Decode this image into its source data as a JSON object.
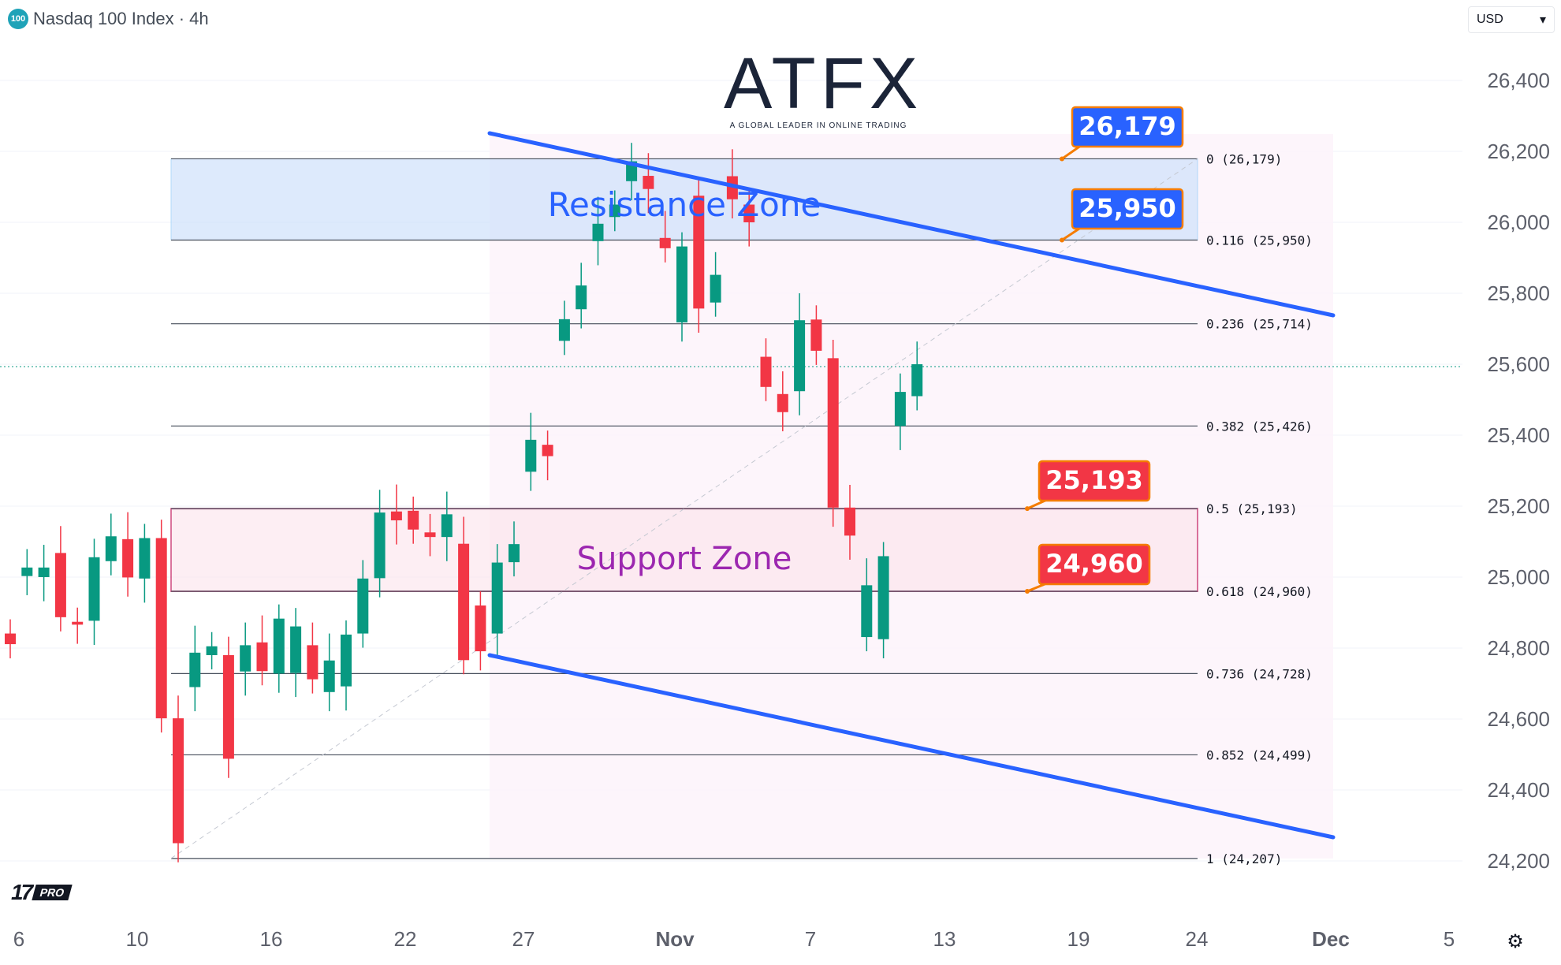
{
  "header": {
    "badge": "100",
    "title": "Nasdaq 100 Index · 4h"
  },
  "currency": {
    "label": "USD",
    "caret": "▾"
  },
  "logo": {
    "word": "ATFX",
    "tagline": "A GLOBAL LEADER IN ONLINE TRADING"
  },
  "watermark": {
    "text": "PRO"
  },
  "settings_icon": "⚙",
  "chart_data": {
    "type": "candlestick",
    "y_axis": {
      "min": 24100,
      "max": 26450,
      "ticks": [
        26400,
        26200,
        26000,
        25800,
        25600,
        25400,
        25200,
        25000,
        24800,
        24600,
        24400,
        24200
      ]
    },
    "x_axis": {
      "labels": [
        "6",
        "10",
        "16",
        "22",
        "27",
        "Nov",
        "7",
        "13",
        "19",
        "24",
        "Dec",
        "5"
      ]
    },
    "candles": [
      [
        24841,
        24811
      ],
      [
        25003,
        25027
      ],
      [
        25000,
        25027
      ],
      [
        25068,
        24887
      ],
      [
        24874,
        24866
      ],
      [
        24877,
        25056
      ],
      [
        25045,
        25115
      ],
      [
        25107,
        24999
      ],
      [
        24996,
        25110
      ],
      [
        25110,
        24602
      ],
      [
        24602,
        24250
      ],
      [
        24690,
        24787
      ],
      [
        24780,
        24805
      ],
      [
        24780,
        24488
      ],
      [
        24734,
        24808
      ],
      [
        24816,
        24735
      ],
      [
        24728,
        24883
      ],
      [
        24730,
        24861
      ],
      [
        24808,
        24712
      ],
      [
        24676,
        24765
      ],
      [
        24692,
        24838
      ],
      [
        24841,
        24996
      ],
      [
        24997,
        25182
      ],
      [
        25185,
        25160
      ],
      [
        25187,
        25134
      ],
      [
        25126,
        25113
      ],
      [
        25113,
        25177
      ],
      [
        25094,
        24766
      ],
      [
        24920,
        24791
      ],
      [
        24841,
        25041
      ],
      [
        25042,
        25093
      ],
      [
        25297,
        25387
      ],
      [
        25373,
        25341
      ],
      [
        25666,
        25727
      ],
      [
        25755,
        25822
      ],
      [
        25947,
        25996
      ],
      [
        26015,
        26050
      ],
      [
        26116,
        26172
      ],
      [
        26131,
        26094
      ],
      [
        25956,
        25927
      ],
      [
        25718,
        25932
      ],
      [
        26075,
        25757
      ],
      [
        25774,
        25852
      ],
      [
        26130,
        26065
      ],
      [
        26050,
        26000
      ],
      [
        25621,
        25536
      ],
      [
        25516,
        25465
      ],
      [
        25524,
        25724
      ],
      [
        25726,
        25638
      ],
      [
        25617,
        25196
      ],
      [
        25196,
        25117
      ],
      [
        24831,
        24977
      ],
      [
        24825,
        25059
      ],
      [
        25426,
        25522
      ],
      [
        25510,
        25600
      ]
    ],
    "fib": {
      "levels": [
        {
          "ratio": "0",
          "value": 26179,
          "label": "0 (26,179)"
        },
        {
          "ratio": "0.116",
          "value": 25950,
          "label": "0.116 (25,950)"
        },
        {
          "ratio": "0.236",
          "value": 25714,
          "label": "0.236 (25,714)"
        },
        {
          "ratio": "0.382",
          "value": 25426,
          "label": "0.382 (25,426)"
        },
        {
          "ratio": "0.5",
          "value": 25193,
          "label": "0.5 (25,193)"
        },
        {
          "ratio": "0.618",
          "value": 24960,
          "label": "0.618 (24,960)"
        },
        {
          "ratio": "0.736",
          "value": 24728,
          "label": "0.736 (24,728)"
        },
        {
          "ratio": "0.852",
          "value": 24499,
          "label": "0.852 (24,499)"
        },
        {
          "ratio": "1",
          "value": 24207,
          "label": "1 (24,207)"
        }
      ]
    },
    "zones": [
      {
        "name": "Resistance Zone",
        "top": 26179,
        "bottom": 25950
      },
      {
        "name": "Support Zone",
        "top": 25193,
        "bottom": 24960
      }
    ],
    "price_tags": [
      {
        "text": "26,179",
        "value": 26179,
        "color": "#2962ff"
      },
      {
        "text": "25,950",
        "value": 25950,
        "color": "#2962ff"
      },
      {
        "text": "25,193",
        "value": 25193,
        "color": "#f23645"
      },
      {
        "text": "24,960",
        "value": 24960,
        "color": "#f23645"
      }
    ],
    "current_price": 25600,
    "colors": {
      "up": "#089981",
      "down": "#f23645",
      "channel": "#2962ff",
      "resistance_text": "#2962ff",
      "support_text": "#9c27b0",
      "support_border": "#c2185b",
      "tag_border": "#f57c00"
    }
  }
}
